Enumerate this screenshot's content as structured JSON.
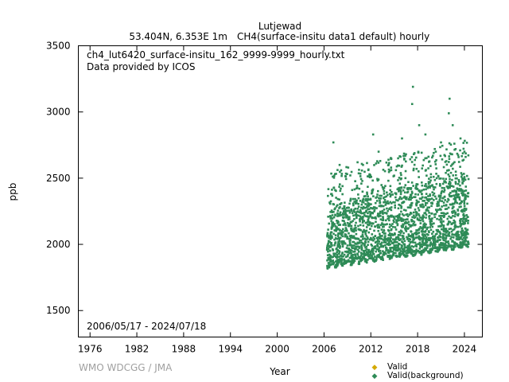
{
  "chart_data": {
    "type": "scatter",
    "title": "Lutjewad",
    "subtitle_left": "53.404N, 6.353E 1m",
    "subtitle_right": "CH4(surface-insitu data1 default) hourly",
    "file_label": "ch4_lut6420_surface-insitu_162_9999-9999_hourly.txt",
    "provider_label": "Data provided by ICOS",
    "date_range": "2006/05/17 - 2024/07/18",
    "xlabel": "Year",
    "ylabel": "ppb",
    "xlim": [
      1974.5,
      2026.3
    ],
    "ylim": [
      1300,
      3500
    ],
    "x_ticks": [
      1976,
      1982,
      1988,
      1994,
      2000,
      2006,
      2012,
      2018,
      2024
    ],
    "y_ticks": [
      1500,
      2000,
      2500,
      3000,
      3500
    ],
    "grid": false,
    "legend_position": "bottom-right",
    "series": [
      {
        "name": "Valid",
        "color": "#d4a900",
        "values": []
      },
      {
        "name": "Valid(background)",
        "color": "#2e8b57",
        "x_range": [
          2006.38,
          2024.54
        ],
        "baseline_start": 1830,
        "baseline_end": 1990,
        "typical_upper_start": 2300,
        "typical_upper_end": 2550,
        "peaks": [
          {
            "x": 2007.2,
            "y": 2770
          },
          {
            "x": 2008.0,
            "y": 2600
          },
          {
            "x": 2009.1,
            "y": 2580
          },
          {
            "x": 2010.3,
            "y": 2620
          },
          {
            "x": 2011.0,
            "y": 2600
          },
          {
            "x": 2012.3,
            "y": 2830
          },
          {
            "x": 2013.0,
            "y": 2700
          },
          {
            "x": 2014.6,
            "y": 2580
          },
          {
            "x": 2015.5,
            "y": 2650
          },
          {
            "x": 2016.0,
            "y": 2800
          },
          {
            "x": 2017.3,
            "y": 3060
          },
          {
            "x": 2017.4,
            "y": 3190
          },
          {
            "x": 2018.2,
            "y": 2900
          },
          {
            "x": 2019.0,
            "y": 2830
          },
          {
            "x": 2020.2,
            "y": 2720
          },
          {
            "x": 2021.0,
            "y": 2770
          },
          {
            "x": 2022.1,
            "y": 3100
          },
          {
            "x": 2022.0,
            "y": 2990
          },
          {
            "x": 2022.5,
            "y": 2900
          },
          {
            "x": 2023.5,
            "y": 2800
          },
          {
            "x": 2024.0,
            "y": 2700
          }
        ]
      }
    ]
  },
  "watermark": "WMO WDCGG / JMA"
}
